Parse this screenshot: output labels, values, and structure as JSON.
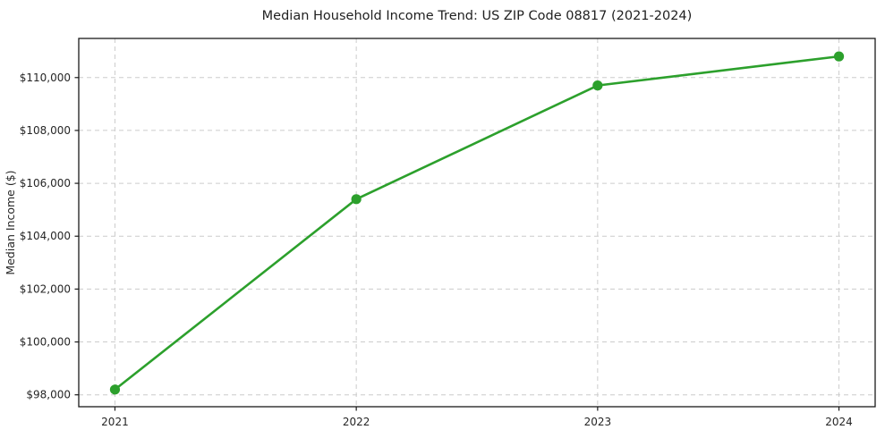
{
  "page": {
    "background_color": "#ffffff"
  },
  "chart_data": {
    "type": "line",
    "title": "Median Household Income Trend: US ZIP Code 08817 (2021-2024)",
    "xlabel": "",
    "ylabel": "Median Income ($)",
    "x": [
      2021,
      2022,
      2023,
      2024
    ],
    "series": [
      {
        "name": "Median Household Income",
        "values": [
          98200,
          105400,
          109700,
          110800
        ]
      }
    ],
    "x_tick_labels": [
      "2021",
      "2022",
      "2023",
      "2024"
    ],
    "y_ticks": [
      98000,
      100000,
      102000,
      104000,
      106000,
      108000,
      110000
    ],
    "y_tick_labels": [
      "$98,000",
      "$100,000",
      "$102,000",
      "$104,000",
      "$106,000",
      "$108,000",
      "$110,000"
    ],
    "xlim": [
      2020.85,
      2024.15
    ],
    "ylim": [
      97550,
      111480
    ],
    "grid": "both-dashed",
    "legend": "none",
    "style": {
      "line_color": "#2ca02c",
      "marker_color": "#2ca02c",
      "grid_color": "#cccccc",
      "spine_color": "#1a1a1a",
      "text_color": "#262626"
    }
  }
}
